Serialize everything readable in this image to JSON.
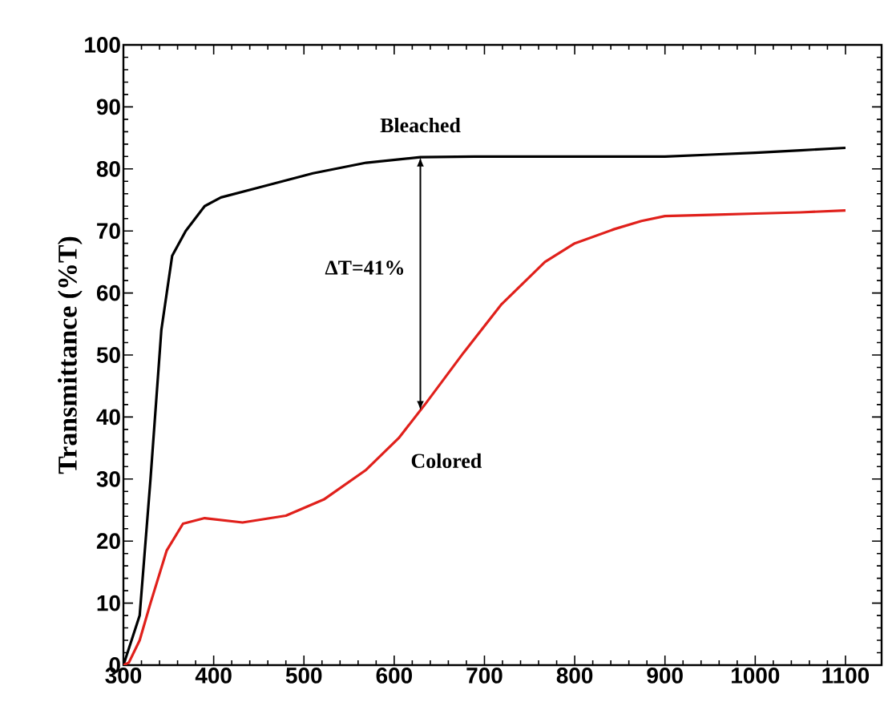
{
  "chart_data": {
    "type": "line",
    "ylabel": "Transmittance (%T)",
    "xlim": [
      300,
      1140
    ],
    "ylim": [
      0,
      100
    ],
    "xticks": [
      300,
      400,
      500,
      600,
      700,
      800,
      900,
      1000,
      1100
    ],
    "yticks": [
      0,
      10,
      20,
      30,
      40,
      50,
      60,
      70,
      80,
      90,
      100
    ],
    "grid": false,
    "marker": "none",
    "line_style": "solid",
    "series": [
      {
        "name": "Bleached",
        "color": "#000000",
        "x": [
          300,
          318,
          330,
          342,
          354,
          369,
          390,
          408,
          450,
          510,
          569,
          629,
          689,
          749,
          800,
          850,
          900,
          950,
          1000,
          1050,
          1100
        ],
        "values": [
          0,
          8,
          30,
          54,
          66,
          70,
          74,
          75.4,
          77,
          79.3,
          81,
          81.9,
          82,
          82,
          82,
          82,
          82,
          82.3,
          82.6,
          83,
          83.4
        ]
      },
      {
        "name": "Colored",
        "color": "#e0201b",
        "x": [
          300,
          306,
          318,
          330,
          348,
          366,
          390,
          432,
          480,
          522,
          569,
          605,
          635,
          677,
          719,
          767,
          800,
          844,
          874,
          900,
          950,
          1000,
          1050,
          1100
        ],
        "values": [
          0,
          0.4,
          4,
          10,
          18.5,
          22.8,
          23.7,
          23,
          24.1,
          26.7,
          31.5,
          36.6,
          42.2,
          50.4,
          58.2,
          65,
          68,
          70.3,
          71.6,
          72.4,
          72.6,
          72.8,
          73,
          73.3
        ]
      }
    ],
    "annotations": [
      "ΔT=41%"
    ]
  }
}
